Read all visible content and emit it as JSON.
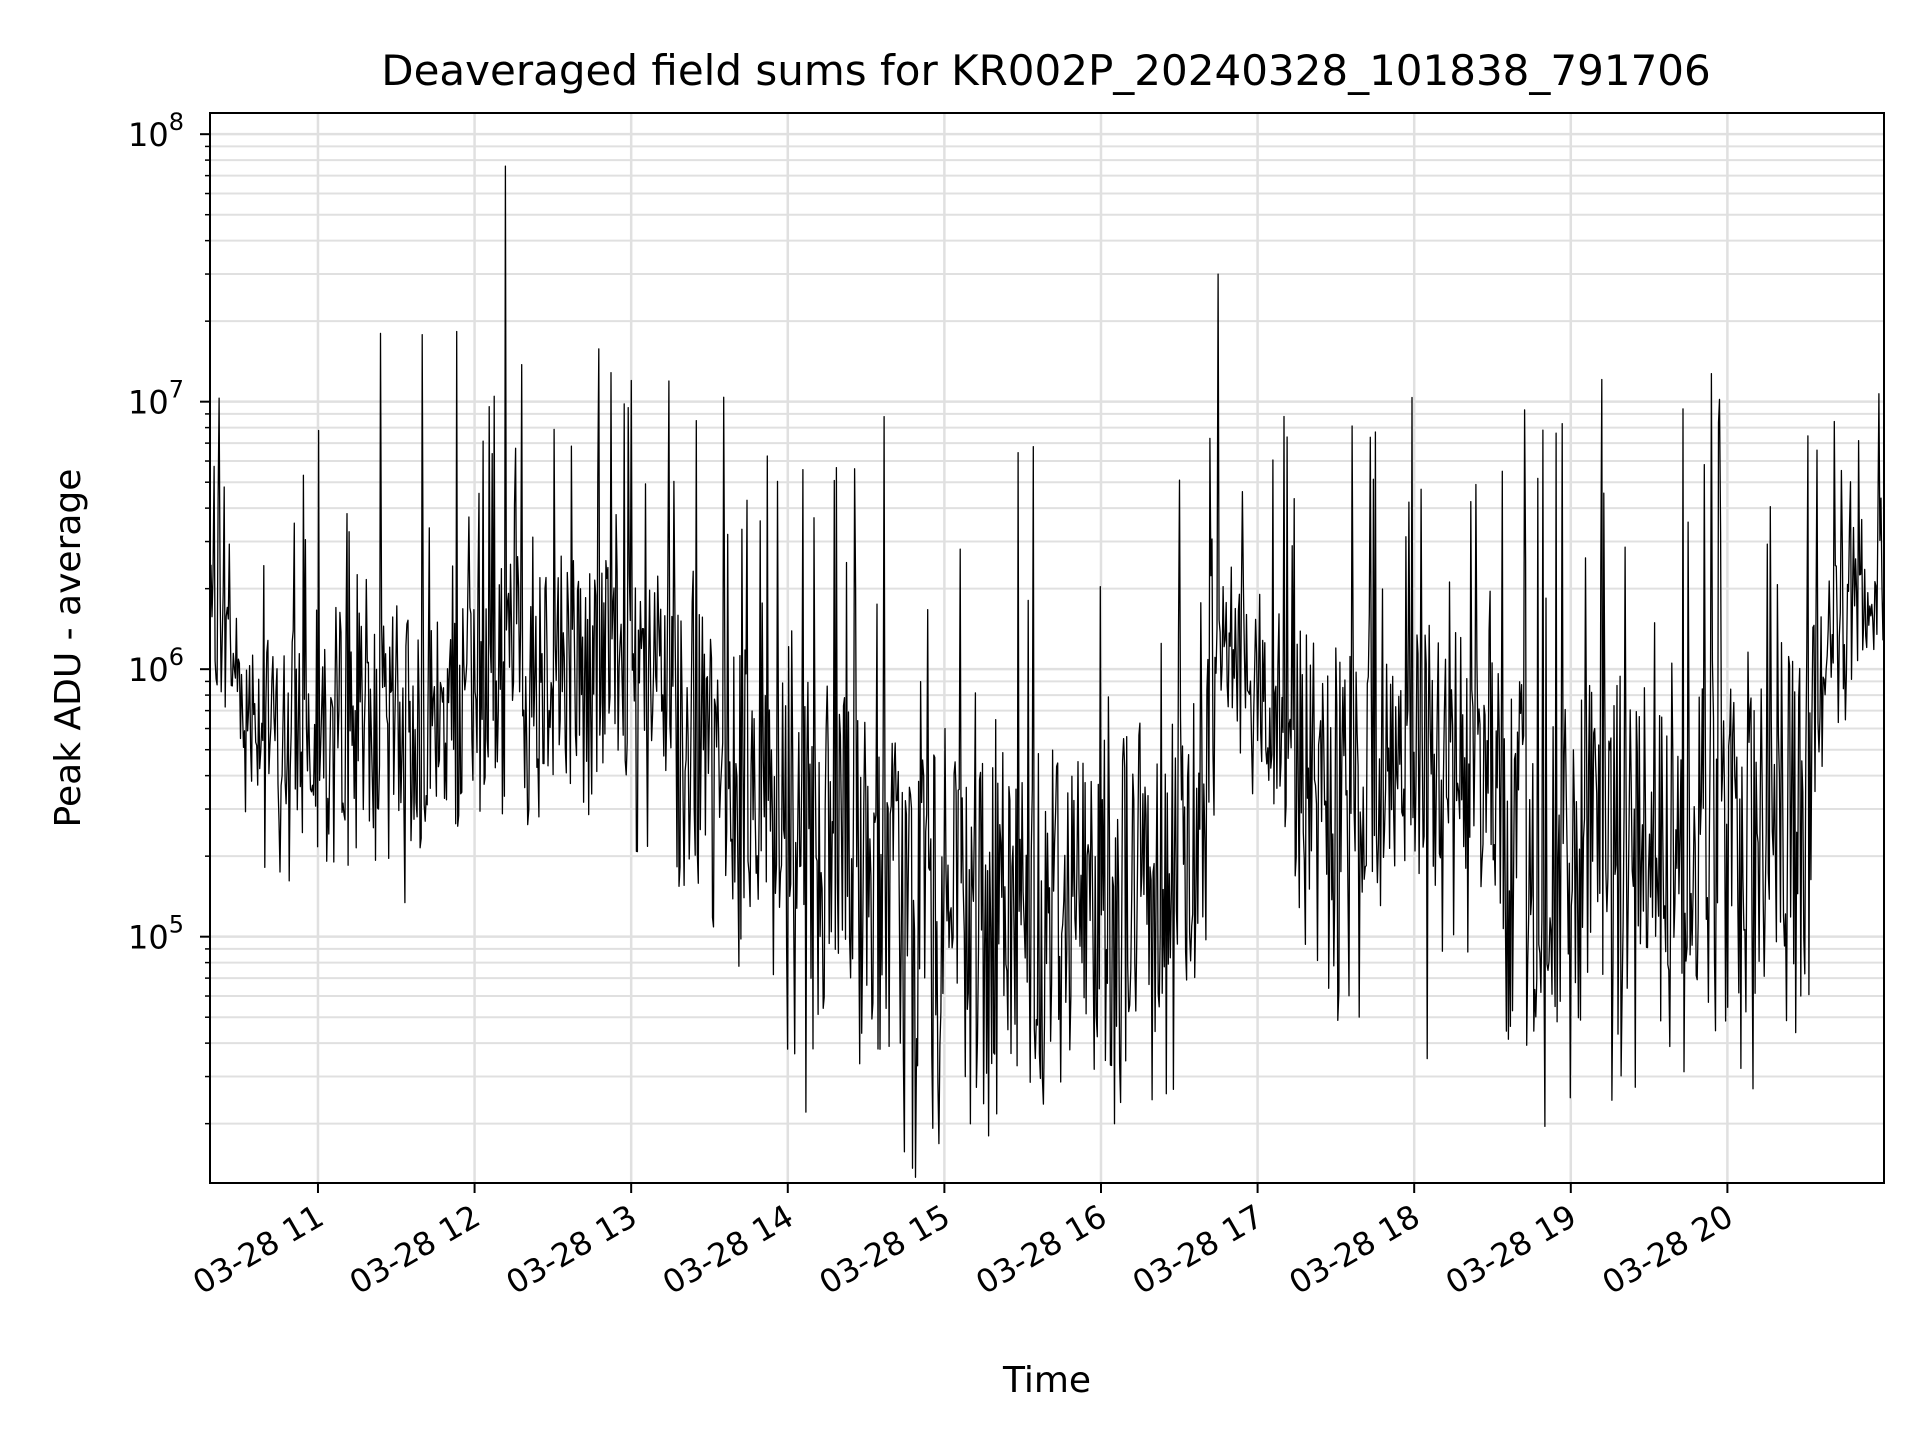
{
  "chart_data": {
    "type": "line",
    "title": "Deaveraged field sums for KR002P_20240328_101838_791706",
    "xlabel": "Time",
    "ylabel": "Peak ADU - average",
    "yscale": "log",
    "ylim": [
      12000,
      120000000
    ],
    "xlim": [
      "2024-03-28 10:18:38",
      "2024-03-28 21:00:00"
    ],
    "x_ticks": [
      {
        "t": "2024-03-28 11:00",
        "label": "03-28 11"
      },
      {
        "t": "2024-03-28 12:00",
        "label": "03-28 12"
      },
      {
        "t": "2024-03-28 13:00",
        "label": "03-28 13"
      },
      {
        "t": "2024-03-28 14:00",
        "label": "03-28 14"
      },
      {
        "t": "2024-03-28 15:00",
        "label": "03-28 15"
      },
      {
        "t": "2024-03-28 16:00",
        "label": "03-28 16"
      },
      {
        "t": "2024-03-28 17:00",
        "label": "03-28 17"
      },
      {
        "t": "2024-03-28 18:00",
        "label": "03-28 18"
      },
      {
        "t": "2024-03-28 19:00",
        "label": "03-28 19"
      },
      {
        "t": "2024-03-28 20:00",
        "label": "03-28 20"
      }
    ],
    "y_ticks": [
      {
        "value": 100000,
        "base": "10",
        "exp": "5"
      },
      {
        "value": 1000000,
        "base": "10",
        "exp": "6"
      },
      {
        "value": 10000000,
        "base": "10",
        "exp": "7"
      },
      {
        "value": 100000000,
        "base": "10",
        "exp": "8"
      }
    ],
    "grid": true,
    "minor_grid": true,
    "series_color": "#000000",
    "grid_color": "#e0e0e0",
    "series": [
      {
        "x": [
          "2024-03-28 10:18:38",
          "2024-03-28 10:27",
          "2024-03-28 10:36",
          "2024-03-28 10:45",
          "2024-03-28 10:54",
          "2024-03-28 11:03",
          "2024-03-28 11:12",
          "2024-03-28 11:21",
          "2024-03-28 11:30",
          "2024-03-28 11:39",
          "2024-03-28 11:48",
          "2024-03-28 11:57",
          "2024-03-28 12:06",
          "2024-03-28 12:15",
          "2024-03-28 12:24",
          "2024-03-28 12:33",
          "2024-03-28 12:42",
          "2024-03-28 12:51",
          "2024-03-28 13:00",
          "2024-03-28 13:09",
          "2024-03-28 13:18",
          "2024-03-28 13:27",
          "2024-03-28 13:36",
          "2024-03-28 13:45",
          "2024-03-28 13:54",
          "2024-03-28 14:03",
          "2024-03-28 14:12",
          "2024-03-28 14:21",
          "2024-03-28 14:30",
          "2024-03-28 14:39",
          "2024-03-28 14:48",
          "2024-03-28 14:57",
          "2024-03-28 15:06",
          "2024-03-28 15:15",
          "2024-03-28 15:24",
          "2024-03-28 15:33",
          "2024-03-28 15:42",
          "2024-03-28 15:51",
          "2024-03-28 16:00",
          "2024-03-28 16:09",
          "2024-03-28 16:18",
          "2024-03-28 16:27",
          "2024-03-28 16:36",
          "2024-03-28 16:45",
          "2024-03-28 16:54",
          "2024-03-28 17:03",
          "2024-03-28 17:12",
          "2024-03-28 17:21",
          "2024-03-28 17:30",
          "2024-03-28 17:39",
          "2024-03-28 17:48",
          "2024-03-28 17:57",
          "2024-03-28 18:06",
          "2024-03-28 18:15",
          "2024-03-28 18:24",
          "2024-03-28 18:33",
          "2024-03-28 18:42",
          "2024-03-28 18:51",
          "2024-03-28 19:00",
          "2024-03-28 19:09",
          "2024-03-28 19:18",
          "2024-03-28 19:27",
          "2024-03-28 19:36",
          "2024-03-28 19:45",
          "2024-03-28 19:54",
          "2024-03-28 20:03",
          "2024-03-28 20:12",
          "2024-03-28 20:21",
          "2024-03-28 20:30",
          "2024-03-28 20:39",
          "2024-03-28 20:48",
          "2024-03-28 20:57"
        ],
        "y": [
          1800000,
          1100000,
          700000,
          500000,
          600000,
          700000,
          650000,
          600000,
          550000,
          600000,
          650000,
          600000,
          700000,
          750000,
          900000,
          850000,
          800000,
          850000,
          900000,
          800000,
          600000,
          450000,
          400000,
          350000,
          280000,
          200000,
          170000,
          140000,
          120000,
          100000,
          80000,
          70000,
          65000,
          55000,
          70000,
          80000,
          90000,
          85000,
          75000,
          90000,
          100000,
          130000,
          150000,
          1000000,
          1300000,
          600000,
          450000,
          300000,
          250000,
          230000,
          300000,
          350000,
          400000,
          380000,
          350000,
          300000,
          180000,
          100000,
          120000,
          150000,
          180000,
          200000,
          220000,
          200000,
          170000,
          150000,
          160000,
          180000,
          200000,
          1500000,
          1800000,
          1600000
        ],
        "envelope_high": [
          2500000,
          2000000,
          1500000,
          1200000,
          1600000,
          1700000,
          1800000,
          1500000,
          1600000,
          1700000,
          1500000,
          1800000,
          2500000,
          3000000,
          3500000,
          3200000,
          2800000,
          2900000,
          2500000,
          2300000,
          2000000,
          1600000,
          1400000,
          1200000,
          1100000,
          900000,
          900000,
          800000,
          700000,
          700000,
          600000,
          500000,
          450000,
          420000,
          550000,
          600000,
          650000,
          600000,
          550000,
          650000,
          700000,
          800000,
          900000,
          2500000,
          3000000,
          2000000,
          1600000,
          1300000,
          1200000,
          1100000,
          1200000,
          1400000,
          1500000,
          1400000,
          1300000,
          1200000,
          900000,
          700000,
          800000,
          900000,
          1000000,
          1100000,
          1200000,
          1100000,
          1000000,
          900000,
          1000000,
          1100000,
          1200000,
          3000000,
          3500000,
          3200000
        ],
        "envelope_low": [
          1000000,
          600000,
          350000,
          250000,
          280000,
          300000,
          260000,
          250000,
          230000,
          250000,
          260000,
          250000,
          300000,
          350000,
          400000,
          380000,
          360000,
          380000,
          400000,
          350000,
          250000,
          180000,
          150000,
          120000,
          90000,
          60000,
          50000,
          45000,
          40000,
          35000,
          30000,
          28000,
          25000,
          22000,
          28000,
          32000,
          38000,
          35000,
          30000,
          35000,
          40000,
          55000,
          65000,
          600000,
          700000,
          300000,
          220000,
          130000,
          110000,
          100000,
          120000,
          150000,
          170000,
          160000,
          150000,
          120000,
          45000,
          35000,
          40000,
          50000,
          60000,
          65000,
          70000,
          65000,
          55000,
          50000,
          55000,
          60000,
          70000,
          900000,
          1000000,
          900000
        ],
        "spikes": [
          {
            "x": "2024-03-28 10:22",
            "y": 10300000
          },
          {
            "x": "2024-03-28 11:24",
            "y": 18000000
          },
          {
            "x": "2024-03-28 11:40",
            "y": 17800000
          },
          {
            "x": "2024-03-28 11:53",
            "y": 18300000
          },
          {
            "x": "2024-03-28 12:12",
            "y": 76000000
          },
          {
            "x": "2024-03-28 13:00",
            "y": 12000000
          },
          {
            "x": "2024-03-28 13:25",
            "y": 8500000
          },
          {
            "x": "2024-03-28 14:00",
            "y": 38000
          },
          {
            "x": "2024-03-28 15:17",
            "y": 18000
          },
          {
            "x": "2024-03-28 16:05",
            "y": 20000
          },
          {
            "x": "2024-03-28 16:45",
            "y": 30000000
          },
          {
            "x": "2024-03-28 17:10",
            "y": 8800000
          },
          {
            "x": "2024-03-28 17:45",
            "y": 7700000
          },
          {
            "x": "2024-03-28 18:05",
            "y": 35000
          },
          {
            "x": "2024-03-28 19:00",
            "y": 25000
          },
          {
            "x": "2024-03-28 19:43",
            "y": 9400000
          },
          {
            "x": "2024-03-28 20:10",
            "y": 27000
          },
          {
            "x": "2024-03-28 20:58",
            "y": 10700000
          }
        ]
      }
    ]
  }
}
